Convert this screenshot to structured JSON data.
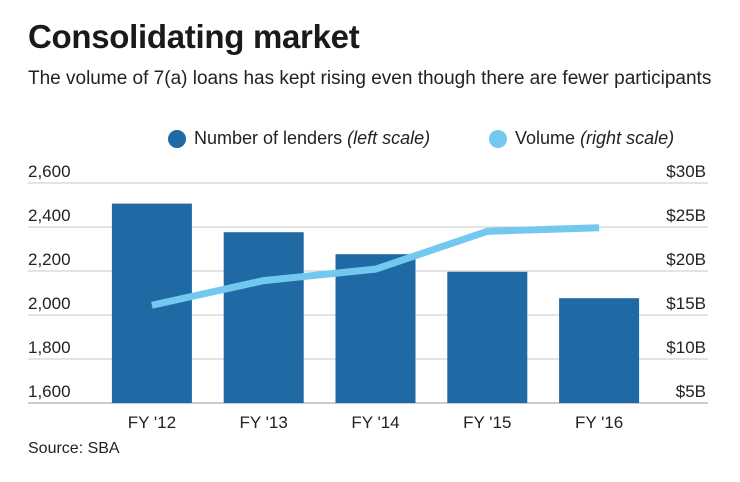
{
  "header": {
    "title": "Consolidating market",
    "subtitle": "The volume of 7(a) loans has kept rising even though there are fewer participants"
  },
  "legend": {
    "items": [
      {
        "label": "Number of lenders",
        "note": "(left scale)",
        "color": "#1f6aa5"
      },
      {
        "label": "Volume",
        "note": "(right scale)",
        "color": "#73c8f0"
      }
    ]
  },
  "source": "Source: SBA",
  "chart_data": {
    "type": "bar",
    "categories": [
      "FY '12",
      "FY '13",
      "FY '14",
      "FY '15",
      "FY '16"
    ],
    "series": [
      {
        "name": "Number of lenders",
        "type": "bar",
        "axis": "left",
        "color": "#1f6aa5",
        "values": [
          2470,
          2340,
          2240,
          2160,
          2040
        ]
      },
      {
        "name": "Volume",
        "type": "line",
        "axis": "right",
        "color": "#73c8f0",
        "values": [
          15.2,
          18.0,
          19.3,
          23.6,
          24.0
        ]
      }
    ],
    "y_left": {
      "ylim": [
        1600,
        2600
      ],
      "ticks": [
        1600,
        1800,
        2000,
        2200,
        2400,
        2600
      ],
      "tick_labels": [
        "1,600",
        "1,800",
        "2,000",
        "2,200",
        "2,400",
        "2,600"
      ]
    },
    "y_right": {
      "ylim": [
        5,
        30
      ],
      "ticks": [
        5,
        10,
        15,
        20,
        25,
        30
      ],
      "tick_labels": [
        "$5B",
        "$10B",
        "$15B",
        "$20B",
        "$25B",
        "$30B"
      ]
    },
    "grid": true,
    "legend_position": "top-right"
  }
}
